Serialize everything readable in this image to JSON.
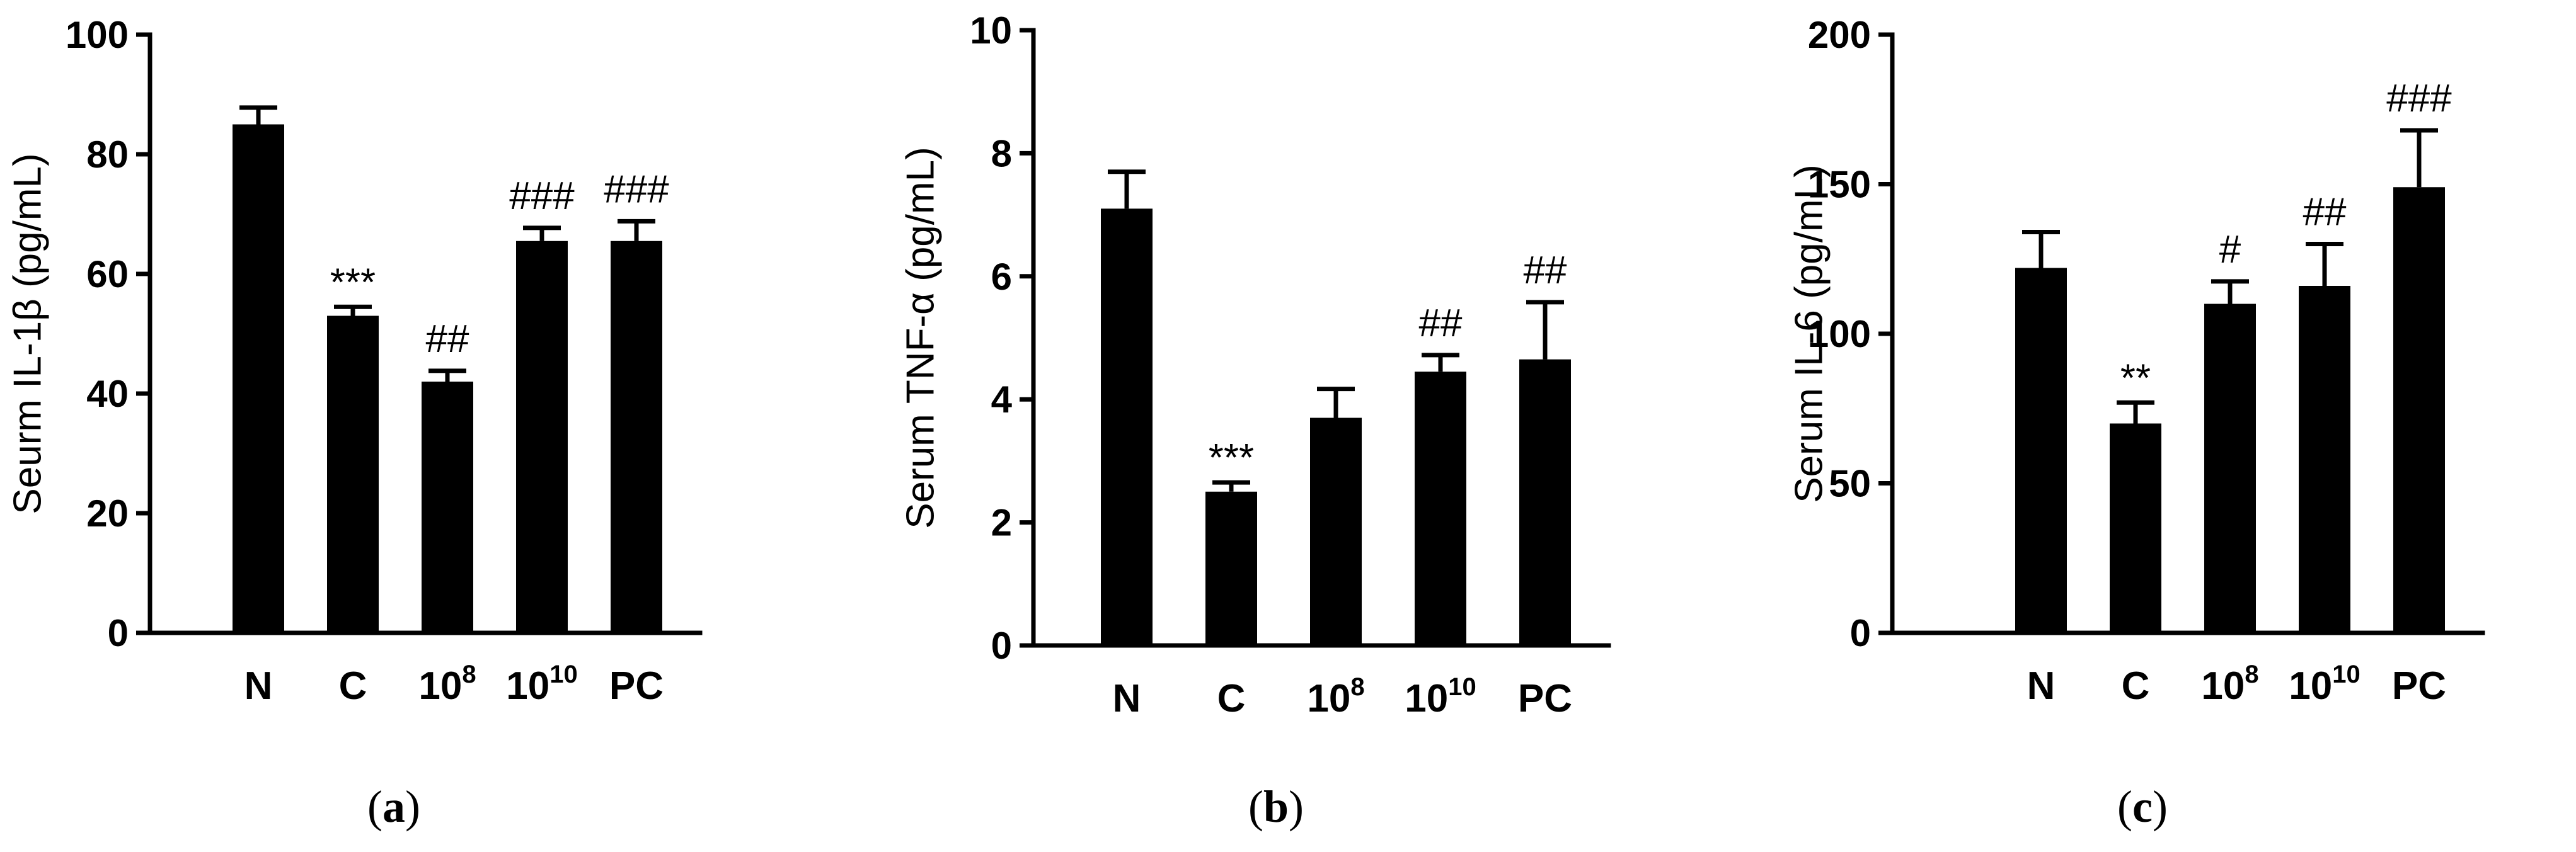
{
  "chart_data": [
    {
      "type": "bar",
      "panel_label": [
        "(",
        "a",
        ")"
      ],
      "ylabel": "Seurm IL-1β (pg/mL)",
      "ylim": [
        0,
        100
      ],
      "yticks": [
        0,
        20,
        40,
        60,
        80,
        100
      ],
      "categories": [
        {
          "base": "N",
          "sup": ""
        },
        {
          "base": "C",
          "sup": ""
        },
        {
          "base": "10",
          "sup": "8"
        },
        {
          "base": "10",
          "sup": "10"
        },
        {
          "base": "PC",
          "sup": ""
        }
      ],
      "values": [
        85,
        53,
        42,
        65.5,
        65.5
      ],
      "errors": [
        2.8,
        1.5,
        1.8,
        2.2,
        3.3
      ],
      "annotations": [
        "",
        "***",
        "##",
        "###",
        "###"
      ],
      "grid": false
    },
    {
      "type": "bar",
      "panel_label": [
        "(",
        "b",
        ")"
      ],
      "ylabel": "Serum TNF-α (pg/mL)",
      "ylim": [
        0,
        10
      ],
      "yticks": [
        0,
        2,
        4,
        6,
        8,
        10
      ],
      "categories": [
        {
          "base": "N",
          "sup": ""
        },
        {
          "base": "C",
          "sup": ""
        },
        {
          "base": "10",
          "sup": "8"
        },
        {
          "base": "10",
          "sup": "10"
        },
        {
          "base": "PC",
          "sup": ""
        }
      ],
      "values": [
        7.1,
        2.5,
        3.7,
        4.45,
        4.65
      ],
      "errors": [
        0.6,
        0.15,
        0.47,
        0.27,
        0.93
      ],
      "annotations": [
        "",
        "***",
        "",
        "##",
        "##"
      ],
      "grid": false
    },
    {
      "type": "bar",
      "panel_label": [
        "(",
        "c",
        ")"
      ],
      "ylabel": "Serum IL-6 (pg/mL)",
      "ylim": [
        0,
        200
      ],
      "yticks": [
        0,
        50,
        100,
        150,
        200
      ],
      "categories": [
        {
          "base": "N",
          "sup": ""
        },
        {
          "base": "C",
          "sup": ""
        },
        {
          "base": "10",
          "sup": "8"
        },
        {
          "base": "10",
          "sup": "10"
        },
        {
          "base": "PC",
          "sup": ""
        }
      ],
      "values": [
        122,
        70,
        110,
        116,
        149
      ],
      "errors": [
        12,
        7,
        7.5,
        14,
        19
      ],
      "annotations": [
        "",
        "**",
        "#",
        "##",
        "###"
      ],
      "grid": false
    }
  ]
}
